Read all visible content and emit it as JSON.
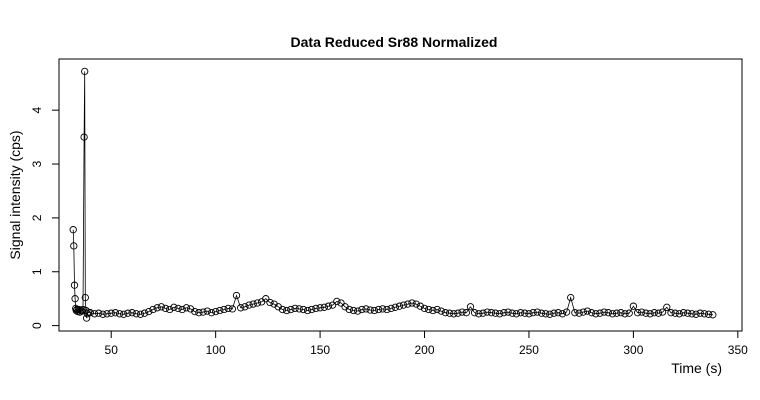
{
  "chart_data": {
    "type": "scatter",
    "title": "Data Reduced Sr88 Normalized",
    "xlabel": "Time (s)",
    "ylabel": "Signal intensity (cps)",
    "xlim": [
      25,
      352
    ],
    "ylim": [
      -0.1,
      4.95
    ],
    "x_ticks": [
      50,
      100,
      150,
      200,
      250,
      300,
      350
    ],
    "y_ticks": [
      0,
      1,
      2,
      3,
      4
    ],
    "grid": false,
    "legend": "none",
    "connected_line": true,
    "point_style": "open-circle",
    "color": "#000000",
    "series": [
      {
        "x": [
          31.8,
          32.1,
          32.4,
          32.7,
          33.0,
          33.3,
          33.6,
          34.0,
          34.5,
          35.0,
          35.5,
          36.0,
          36.5,
          37.0,
          37.3,
          37.6,
          37.9,
          38.2,
          38.6,
          39.0,
          40,
          42,
          44,
          46,
          48,
          50,
          52,
          54,
          56,
          58,
          60,
          62,
          64,
          66,
          68,
          70,
          72,
          74,
          76,
          78,
          80,
          82,
          84,
          86,
          88,
          90,
          92,
          94,
          96,
          98,
          100,
          102,
          104,
          106,
          108,
          110,
          112,
          114,
          116,
          118,
          120,
          122,
          124,
          126,
          128,
          130,
          132,
          134,
          136,
          138,
          140,
          142,
          144,
          146,
          148,
          150,
          152,
          154,
          156,
          158,
          160,
          162,
          164,
          166,
          168,
          170,
          172,
          174,
          176,
          178,
          180,
          182,
          184,
          186,
          188,
          190,
          192,
          194,
          196,
          198,
          200,
          202,
          204,
          206,
          208,
          210,
          212,
          214,
          216,
          218,
          220,
          222,
          224,
          226,
          228,
          230,
          232,
          234,
          236,
          238,
          240,
          242,
          244,
          246,
          248,
          250,
          252,
          254,
          256,
          258,
          260,
          262,
          264,
          266,
          268,
          270,
          272,
          274,
          276,
          278,
          280,
          282,
          284,
          286,
          288,
          290,
          292,
          294,
          296,
          298,
          300,
          302,
          304,
          306,
          308,
          310,
          312,
          314,
          316,
          318,
          320,
          322,
          324,
          326,
          328,
          330,
          332,
          334,
          336,
          338
        ],
        "y": [
          1.78,
          1.48,
          0.75,
          0.5,
          0.32,
          0.28,
          0.3,
          0.26,
          0.3,
          0.25,
          0.28,
          0.27,
          0.3,
          3.5,
          4.72,
          0.52,
          0.28,
          0.14,
          0.22,
          0.25,
          0.24,
          0.22,
          0.23,
          0.21,
          0.22,
          0.23,
          0.24,
          0.22,
          0.21,
          0.23,
          0.24,
          0.22,
          0.21,
          0.23,
          0.26,
          0.3,
          0.33,
          0.35,
          0.32,
          0.3,
          0.34,
          0.32,
          0.3,
          0.33,
          0.31,
          0.26,
          0.24,
          0.25,
          0.27,
          0.24,
          0.26,
          0.28,
          0.3,
          0.32,
          0.31,
          0.56,
          0.33,
          0.35,
          0.38,
          0.4,
          0.42,
          0.44,
          0.5,
          0.43,
          0.4,
          0.35,
          0.3,
          0.28,
          0.3,
          0.32,
          0.31,
          0.3,
          0.28,
          0.3,
          0.32,
          0.33,
          0.34,
          0.36,
          0.38,
          0.45,
          0.42,
          0.35,
          0.3,
          0.28,
          0.27,
          0.3,
          0.31,
          0.29,
          0.28,
          0.3,
          0.31,
          0.3,
          0.32,
          0.34,
          0.36,
          0.38,
          0.4,
          0.42,
          0.4,
          0.36,
          0.32,
          0.3,
          0.28,
          0.3,
          0.27,
          0.24,
          0.23,
          0.22,
          0.23,
          0.25,
          0.24,
          0.35,
          0.24,
          0.22,
          0.23,
          0.25,
          0.24,
          0.23,
          0.22,
          0.24,
          0.25,
          0.23,
          0.22,
          0.24,
          0.23,
          0.22,
          0.24,
          0.25,
          0.23,
          0.22,
          0.21,
          0.23,
          0.24,
          0.22,
          0.25,
          0.52,
          0.24,
          0.23,
          0.25,
          0.27,
          0.24,
          0.22,
          0.23,
          0.25,
          0.24,
          0.22,
          0.23,
          0.24,
          0.22,
          0.23,
          0.36,
          0.24,
          0.25,
          0.23,
          0.22,
          0.24,
          0.23,
          0.25,
          0.34,
          0.24,
          0.23,
          0.22,
          0.24,
          0.23,
          0.22,
          0.21,
          0.23,
          0.22,
          0.21,
          0.2
        ]
      }
    ]
  }
}
